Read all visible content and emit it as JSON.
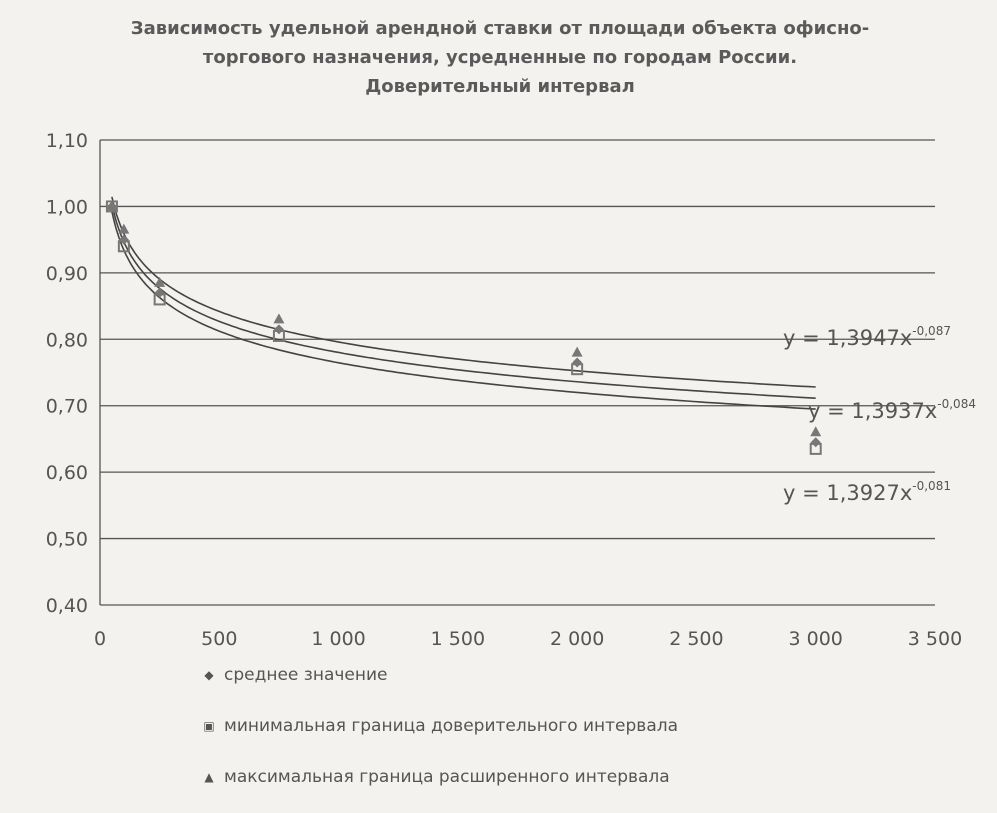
{
  "chart_data": {
    "type": "scatter",
    "title_lines": [
      "Зависимость удельной арендной ставки от площади объекта офисно-",
      "торгового назначения, усредненные по городам России.",
      "Доверительный интервал"
    ],
    "xlim": [
      0,
      3500
    ],
    "ylim": [
      0.4,
      1.1
    ],
    "x_ticks": [
      0,
      500,
      1000,
      1500,
      2000,
      2500,
      3000,
      3500
    ],
    "x_tick_labels": [
      "0",
      "500",
      "1 000",
      "1 500",
      "2 000",
      "2 500",
      "3 000",
      "3 500"
    ],
    "y_ticks": [
      0.4,
      0.5,
      0.6,
      0.7,
      0.8,
      0.9,
      1.0,
      1.1
    ],
    "y_tick_labels": [
      "0,40",
      "0,50",
      "0,60",
      "0,70",
      "0,80",
      "0,90",
      "1,00",
      "1,10"
    ],
    "grid": true,
    "legend_position": "bottom",
    "series": [
      {
        "name": "среднее значение",
        "marker": "diamond",
        "x": [
          50,
          100,
          250,
          750,
          2000,
          3000
        ],
        "y": [
          1.0,
          0.95,
          0.87,
          0.815,
          0.765,
          0.645
        ]
      },
      {
        "name": "минимальная граница доверительного интервала",
        "marker": "square",
        "x": [
          50,
          100,
          250,
          750,
          2000,
          3000
        ],
        "y": [
          1.0,
          0.94,
          0.86,
          0.805,
          0.755,
          0.635
        ]
      },
      {
        "name": "максимальная граница расширенного интервала",
        "marker": "triangle",
        "x": [
          50,
          100,
          250,
          750,
          2000,
          3000
        ],
        "y": [
          1.0,
          0.965,
          0.885,
          0.83,
          0.78,
          0.66
        ]
      }
    ],
    "trendlines": [
      {
        "a": 1.3947,
        "b": -0.087,
        "label": "y = 1,3947x",
        "exp": "-0,087"
      },
      {
        "a": 1.3937,
        "b": -0.084,
        "label": "y = 1,3937x",
        "exp": "-0,084"
      },
      {
        "a": 1.3927,
        "b": -0.081,
        "label": "y = 1,3927x",
        "exp": "-0,081"
      }
    ],
    "trend_x_range": [
      50,
      3000
    ],
    "colors": {
      "gridline": "#555555",
      "marker": "#777777",
      "trendline": "#444444"
    }
  }
}
